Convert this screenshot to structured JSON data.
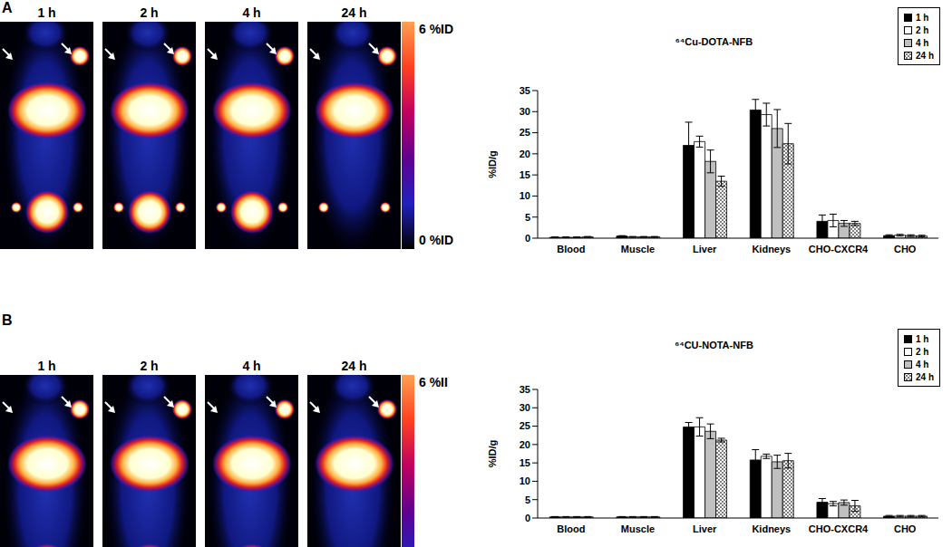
{
  "panels": [
    {
      "label": "A",
      "image_times": [
        "1 h",
        "2 h",
        "4 h",
        "24 h"
      ],
      "colorbar_max": "6 %ID",
      "colorbar_min": "0 %ID"
    },
    {
      "label": "B",
      "image_times": [
        "1 h",
        "2 h",
        "4 h",
        "24 h"
      ],
      "colorbar_max": "6 %II"
    }
  ],
  "chart_data": [
    {
      "type": "bar",
      "title": "⁶⁴Cu-DOTA-NFB",
      "categories": [
        "Blood",
        "Muscle",
        "Liver",
        "Kidneys",
        "CHO-CXCR4",
        "CHO"
      ],
      "y_label": "%ID/g",
      "ylim": [
        0,
        35
      ],
      "yticks": [
        0,
        5,
        10,
        15,
        20,
        25,
        30,
        35
      ],
      "grid": false,
      "legend": "top-right",
      "series": [
        {
          "name": "1 h",
          "color": "#000000",
          "values": [
            0.2,
            0.5,
            22,
            30.4,
            4,
            0.6
          ],
          "errors": [
            0.1,
            0.1,
            5.5,
            2.5,
            1.5,
            0.2
          ]
        },
        {
          "name": "2 h",
          "color": "#ffffff",
          "values": [
            0.2,
            0.3,
            22.9,
            29.3,
            4.2,
            0.7
          ],
          "errors": [
            0.1,
            0.1,
            1.3,
            2.7,
            1.5,
            0.2
          ]
        },
        {
          "name": "4 h",
          "color": "#c0c0c0",
          "values": [
            0.2,
            0.3,
            18.2,
            26,
            3.5,
            0.6
          ],
          "errors": [
            0.1,
            0.1,
            2.7,
            4.5,
            0.7,
            0.2
          ]
        },
        {
          "name": "24 h",
          "color": "#404040",
          "marker": "dots",
          "values": [
            0.3,
            0.3,
            13.5,
            22.4,
            3.5,
            0.5
          ],
          "errors": [
            0.1,
            0.1,
            1.2,
            4.8,
            0.5,
            0.2
          ]
        }
      ]
    },
    {
      "type": "bar",
      "title": "⁶⁴CU-NOTA-NFB",
      "categories": [
        "Blood",
        "Muscle",
        "Liver",
        "Kidneys",
        "CHO-CXCR4",
        "CHO"
      ],
      "y_label": "%ID/g",
      "ylim": [
        0,
        35
      ],
      "yticks": [
        0,
        5,
        10,
        15,
        20,
        25,
        30,
        35
      ],
      "grid": false,
      "legend": "top-right",
      "series": [
        {
          "name": "1 h",
          "color": "#000000",
          "values": [
            0.3,
            0.3,
            24.8,
            15.8,
            4.3,
            0.5
          ],
          "errors": [
            0.1,
            0.1,
            1.2,
            2.8,
            1,
            0.2
          ]
        },
        {
          "name": "2 h",
          "color": "#ffffff",
          "values": [
            0.3,
            0.3,
            24.8,
            16.8,
            3.9,
            0.5
          ],
          "errors": [
            0.1,
            0.1,
            2.5,
            0.6,
            0.6,
            0.2
          ]
        },
        {
          "name": "4 h",
          "color": "#c0c0c0",
          "values": [
            0.3,
            0.3,
            23.6,
            15.3,
            4.2,
            0.5
          ],
          "errors": [
            0.1,
            0.1,
            2,
            1.8,
            0.7,
            0.2
          ]
        },
        {
          "name": "24 h",
          "color": "#404040",
          "marker": "dots",
          "values": [
            0.3,
            0.3,
            21.2,
            15.6,
            3.3,
            0.5
          ],
          "errors": [
            0.1,
            0.1,
            0.5,
            2,
            1.5,
            0.2
          ]
        }
      ]
    }
  ]
}
